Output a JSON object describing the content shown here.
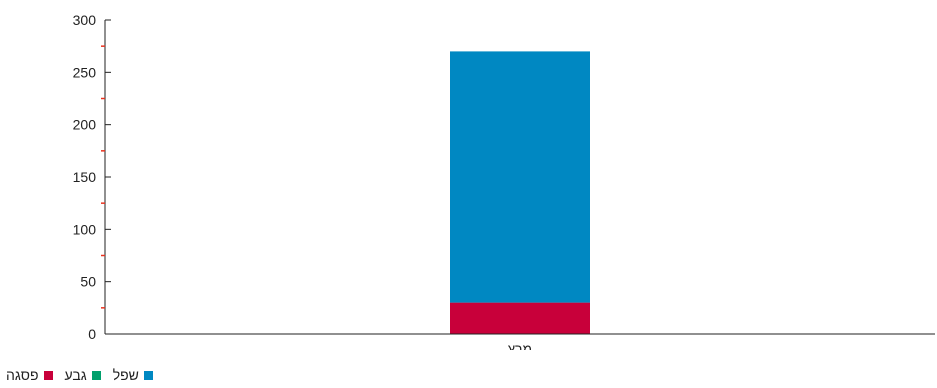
{
  "chart_data": {
    "type": "bar",
    "stacked": true,
    "categories": [
      "מרץ"
    ],
    "series": [
      {
        "name": "פסגה",
        "values": [
          30
        ],
        "color": "#c8003a"
      },
      {
        "name": "גבע",
        "values": [
          0
        ],
        "color": "#00a06c"
      },
      {
        "name": "שפל",
        "values": [
          240
        ],
        "color": "#0088c2"
      }
    ],
    "ylim": [
      0,
      300
    ],
    "yticks": [
      0,
      50,
      100,
      150,
      200,
      250,
      300
    ],
    "ytick_labels": [
      "0",
      "50",
      "100",
      "150",
      "200",
      "250",
      "300"
    ],
    "minor_tick_color": "#e8331f",
    "grid": false,
    "legend_position": "bottom-left",
    "legend": [
      "שפל",
      "גבע",
      "פסגה"
    ]
  }
}
